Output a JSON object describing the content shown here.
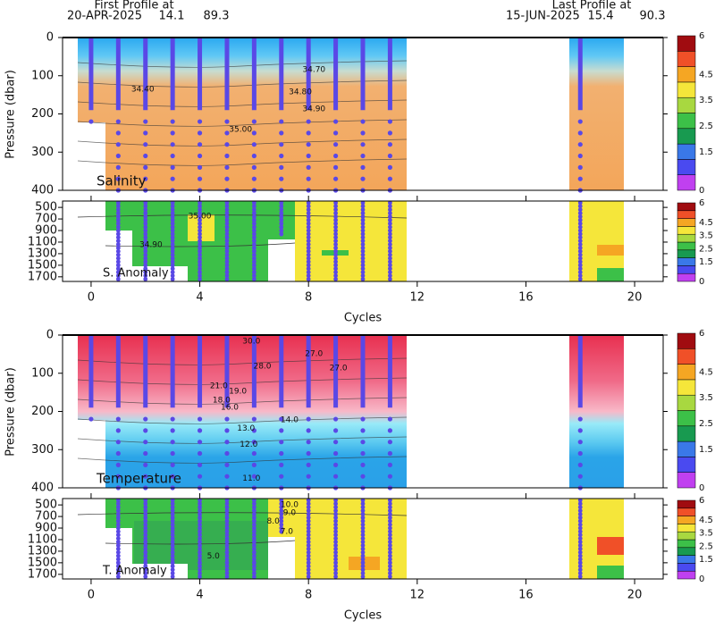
{
  "header": {
    "first": {
      "title": "First Profile at",
      "date": "20-APR-2025",
      "lat": 14.1,
      "lon": 89.3
    },
    "last": {
      "title": "Last Profile at",
      "date": "15-JUN-2025",
      "lat": 15.4,
      "lon": 90.3
    }
  },
  "chart_data": [
    {
      "type": "section",
      "label": "Salinity",
      "anomaly_label": "S. Anomaly",
      "xlabel": "Cycles",
      "ylabel": "Pressure (dbar)",
      "xlim": [
        -1.05,
        21.05
      ],
      "xticks": [
        0,
        4,
        8,
        12,
        16,
        20
      ],
      "ylim": [
        0,
        400
      ],
      "yticks": [
        0,
        100,
        200,
        300,
        400
      ],
      "y2lim": [
        390,
        1780
      ],
      "y2ticks": [
        500,
        700,
        900,
        1100,
        1300,
        1500,
        1700
      ],
      "profile_color": "#5a48e6",
      "profiles": [
        {
          "cycle": 0,
          "depth": 220
        },
        {
          "cycle": 1,
          "depth": 1750
        },
        {
          "cycle": 2,
          "depth": 1750
        },
        {
          "cycle": 3,
          "depth": 1750
        },
        {
          "cycle": 4,
          "depth": 1750
        },
        {
          "cycle": 5,
          "depth": 1750
        },
        {
          "cycle": 6,
          "depth": 1750
        },
        {
          "cycle": 7,
          "depth": 1000
        },
        {
          "cycle": 8,
          "depth": 1750
        },
        {
          "cycle": 9,
          "depth": 1750
        },
        {
          "cycle": 10,
          "depth": 1750
        },
        {
          "cycle": 11,
          "depth": 1750
        },
        {
          "cycle": 18,
          "depth": 1750
        }
      ],
      "upper_contour_labels": [
        {
          "x": 8.2,
          "y": 84,
          "value": 34.7,
          "label": "34.70"
        },
        {
          "x": 1.9,
          "y": 136,
          "value": 34.4,
          "label": "34.40"
        },
        {
          "x": 7.7,
          "y": 143,
          "value": 34.8,
          "label": "34.80"
        },
        {
          "x": 8.2,
          "y": 187,
          "value": 34.9,
          "label": "34.90"
        },
        {
          "x": 5.5,
          "y": 241,
          "value": 35,
          "label": "35.00"
        }
      ],
      "lower_contour_labels": [
        {
          "x": 4.0,
          "y": 650,
          "value": 35,
          "label": "35.00"
        },
        {
          "x": 2.2,
          "y": 1150,
          "value": 34.9,
          "label": "34.90"
        }
      ],
      "colorbar": {
        "lim": [
          0,
          6
        ],
        "ticks": [
          0,
          1.5,
          2.5,
          3.5,
          4.5,
          6
        ],
        "colors": [
          "#c040f0",
          "#4a4af0",
          "#3a78e8",
          "#189a50",
          "#3cc048",
          "#a8d840",
          "#f5e63a",
          "#f5a623",
          "#f05028",
          "#a00c10"
        ]
      }
    },
    {
      "type": "section",
      "label": "Temperature",
      "anomaly_label": "T. Anomaly",
      "xlabel": "Cycles",
      "ylabel": "Pressure (dbar)",
      "xlim": [
        -1.05,
        21.05
      ],
      "xticks": [
        0,
        4,
        8,
        12,
        16,
        20
      ],
      "ylim": [
        0,
        400
      ],
      "yticks": [
        0,
        100,
        200,
        300,
        400
      ],
      "y2lim": [
        390,
        1780
      ],
      "y2ticks": [
        500,
        700,
        900,
        1100,
        1300,
        1500,
        1700
      ],
      "profile_color": "#5a48e6",
      "profiles": [
        {
          "cycle": 0,
          "depth": 220
        },
        {
          "cycle": 1,
          "depth": 1750
        },
        {
          "cycle": 2,
          "depth": 1750
        },
        {
          "cycle": 3,
          "depth": 1750
        },
        {
          "cycle": 4,
          "depth": 1750
        },
        {
          "cycle": 5,
          "depth": 1750
        },
        {
          "cycle": 6,
          "depth": 1750
        },
        {
          "cycle": 7,
          "depth": 1000
        },
        {
          "cycle": 8,
          "depth": 1750
        },
        {
          "cycle": 9,
          "depth": 1750
        },
        {
          "cycle": 10,
          "depth": 1750
        },
        {
          "cycle": 11,
          "depth": 1750
        },
        {
          "cycle": 18,
          "depth": 1750
        }
      ],
      "upper_contour_labels": [
        {
          "x": 5.9,
          "y": 16,
          "value": 30,
          "label": "30.0"
        },
        {
          "x": 8.2,
          "y": 49,
          "value": 27,
          "label": "27.0"
        },
        {
          "x": 6.3,
          "y": 82,
          "value": 28,
          "label": "28.0"
        },
        {
          "x": 9.1,
          "y": 87,
          "value": 27,
          "label": "27.0"
        },
        {
          "x": 4.7,
          "y": 133,
          "value": 21,
          "label": "21.0"
        },
        {
          "x": 5.4,
          "y": 147,
          "value": 19,
          "label": "19.0"
        },
        {
          "x": 4.8,
          "y": 171,
          "value": 18,
          "label": "18.0"
        },
        {
          "x": 5.1,
          "y": 189,
          "value": 16,
          "label": "16.0"
        },
        {
          "x": 7.3,
          "y": 222,
          "value": 14,
          "label": "14.0"
        },
        {
          "x": 5.7,
          "y": 245,
          "value": 13,
          "label": "13.0"
        },
        {
          "x": 5.8,
          "y": 287,
          "value": 12,
          "label": "12.0"
        },
        {
          "x": 5.9,
          "y": 376,
          "value": 11,
          "label": "11.0"
        }
      ],
      "lower_contour_labels": [
        {
          "x": 7.3,
          "y": 500,
          "value": 10,
          "label": "10.0"
        },
        {
          "x": 7.3,
          "y": 640,
          "value": 9,
          "label": "9.0"
        },
        {
          "x": 6.7,
          "y": 780,
          "value": 8,
          "label": "8.0"
        },
        {
          "x": 7.2,
          "y": 965,
          "value": 7,
          "label": "7.0"
        },
        {
          "x": 4.5,
          "y": 1390,
          "value": 5,
          "label": "5.0"
        }
      ],
      "colorbar": {
        "lim": [
          0,
          6
        ],
        "ticks": [
          0,
          1.5,
          2.5,
          3.5,
          4.5,
          6
        ],
        "colors": [
          "#c040f0",
          "#4a4af0",
          "#3a78e8",
          "#189a50",
          "#3cc048",
          "#a8d840",
          "#f5e63a",
          "#f5a623",
          "#f05028",
          "#a00c10"
        ]
      }
    }
  ]
}
